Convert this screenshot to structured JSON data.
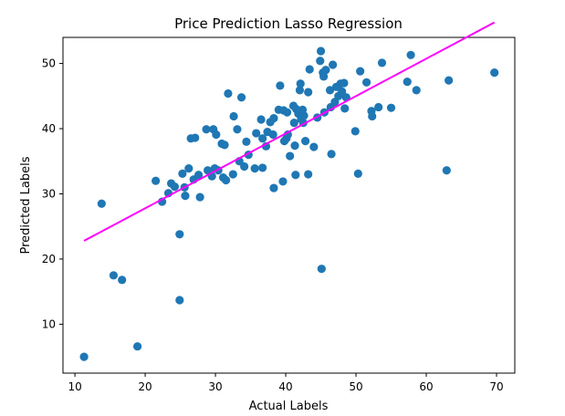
{
  "chart_data": {
    "type": "scatter",
    "title": "Price Prediction Lasso Regression",
    "xlabel": "Actual Labels",
    "ylabel": "Predicted Labels",
    "xlim": [
      8.3,
      72.6
    ],
    "ylim": [
      2.5,
      54.0
    ],
    "xticks": [
      10,
      20,
      30,
      40,
      50,
      60,
      70
    ],
    "yticks": [
      10,
      20,
      30,
      40,
      50
    ],
    "grid": false,
    "colors": {
      "points": "#1f77b4",
      "trendline": "#ff00ff"
    },
    "trendline": {
      "x": [
        11.3,
        69.7
      ],
      "y": [
        22.8,
        56.3
      ]
    },
    "points": [
      [
        11.3,
        5.0
      ],
      [
        13.8,
        28.5
      ],
      [
        15.5,
        17.5
      ],
      [
        16.7,
        16.8
      ],
      [
        18.9,
        6.6
      ],
      [
        21.5,
        32.0
      ],
      [
        22.4,
        28.8
      ],
      [
        23.3,
        30.1
      ],
      [
        23.7,
        31.6
      ],
      [
        24.2,
        31.1
      ],
      [
        24.9,
        23.8
      ],
      [
        24.9,
        13.7
      ],
      [
        25.3,
        33.1
      ],
      [
        25.6,
        31.0
      ],
      [
        25.7,
        29.7
      ],
      [
        26.2,
        33.9
      ],
      [
        26.5,
        38.5
      ],
      [
        26.9,
        32.2
      ],
      [
        27.1,
        38.6
      ],
      [
        27.6,
        32.9
      ],
      [
        27.8,
        29.5
      ],
      [
        28.7,
        39.9
      ],
      [
        28.9,
        33.6
      ],
      [
        29.5,
        32.7
      ],
      [
        29.7,
        39.9
      ],
      [
        29.9,
        33.9
      ],
      [
        30.1,
        39.1
      ],
      [
        30.4,
        33.6
      ],
      [
        30.9,
        37.7
      ],
      [
        31.1,
        32.5
      ],
      [
        31.3,
        37.5
      ],
      [
        31.5,
        32.1
      ],
      [
        31.8,
        45.4
      ],
      [
        32.5,
        33.0
      ],
      [
        32.6,
        41.9
      ],
      [
        33.1,
        39.9
      ],
      [
        33.4,
        35.0
      ],
      [
        33.7,
        44.8
      ],
      [
        34.1,
        34.2
      ],
      [
        34.4,
        38.0
      ],
      [
        34.7,
        36.0
      ],
      [
        35.6,
        33.9
      ],
      [
        35.8,
        39.3
      ],
      [
        36.5,
        41.4
      ],
      [
        36.7,
        34.0
      ],
      [
        36.7,
        38.5
      ],
      [
        37.2,
        37.3
      ],
      [
        37.4,
        39.5
      ],
      [
        37.8,
        41.0
      ],
      [
        38.2,
        39.1
      ],
      [
        38.3,
        41.6
      ],
      [
        38.3,
        30.9
      ],
      [
        39.0,
        42.9
      ],
      [
        39.2,
        46.6
      ],
      [
        39.6,
        31.9
      ],
      [
        39.7,
        42.8
      ],
      [
        39.8,
        38.1
      ],
      [
        40.1,
        38.5
      ],
      [
        40.3,
        39.1
      ],
      [
        40.2,
        42.5
      ],
      [
        40.6,
        35.8
      ],
      [
        41.1,
        43.5
      ],
      [
        41.2,
        40.9
      ],
      [
        41.3,
        37.4
      ],
      [
        41.4,
        32.9
      ],
      [
        41.5,
        43.0
      ],
      [
        41.8,
        42.3
      ],
      [
        42.0,
        45.9
      ],
      [
        42.1,
        46.9
      ],
      [
        42.2,
        41.5
      ],
      [
        42.4,
        42.9
      ],
      [
        42.5,
        40.9
      ],
      [
        42.6,
        42.0
      ],
      [
        42.8,
        38.1
      ],
      [
        43.2,
        45.6
      ],
      [
        43.2,
        33.0
      ],
      [
        43.4,
        49.1
      ],
      [
        44.0,
        37.2
      ],
      [
        44.5,
        41.7
      ],
      [
        44.9,
        50.4
      ],
      [
        45.0,
        51.9
      ],
      [
        45.1,
        18.5
      ],
      [
        45.3,
        48.6
      ],
      [
        45.4,
        48.0
      ],
      [
        45.5,
        42.5
      ],
      [
        45.7,
        49.0
      ],
      [
        46.3,
        45.9
      ],
      [
        46.4,
        43.3
      ],
      [
        46.5,
        36.1
      ],
      [
        46.7,
        49.8
      ],
      [
        47.0,
        44.1
      ],
      [
        47.2,
        46.4
      ],
      [
        47.5,
        45.0
      ],
      [
        47.8,
        46.9
      ],
      [
        48.0,
        45.7
      ],
      [
        48.3,
        47.0
      ],
      [
        48.6,
        44.8
      ],
      [
        48.4,
        43.1
      ],
      [
        49.9,
        39.6
      ],
      [
        50.3,
        33.1
      ],
      [
        50.6,
        48.8
      ],
      [
        51.5,
        47.1
      ],
      [
        52.2,
        42.7
      ],
      [
        52.3,
        41.9
      ],
      [
        53.2,
        43.3
      ],
      [
        53.7,
        50.1
      ],
      [
        55.0,
        43.2
      ],
      [
        57.3,
        47.2
      ],
      [
        57.8,
        51.3
      ],
      [
        58.6,
        45.9
      ],
      [
        62.9,
        33.6
      ],
      [
        63.2,
        47.4
      ],
      [
        69.7,
        48.6
      ]
    ]
  }
}
